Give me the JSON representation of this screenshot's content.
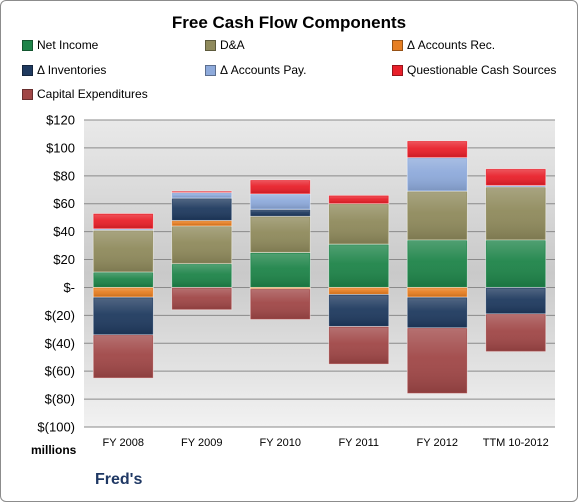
{
  "chart_data": {
    "type": "bar",
    "stacked": true,
    "title": "Free Cash Flow Components",
    "units_label": "millions",
    "company": "Fred's",
    "categories": [
      "FY 2008",
      "FY 2009",
      "FY 2010",
      "FY 2011",
      "FY 2012",
      "TTM 10-2012"
    ],
    "y_ticks": [
      "$120",
      "$100",
      "$80",
      "$60",
      "$40",
      "$20",
      "$-",
      "$(20)",
      "$(40)",
      "$(60)",
      "$(80)",
      "$(100)"
    ],
    "ylim": [
      -100,
      120
    ],
    "grid": true,
    "legend_position": "top",
    "series": [
      {
        "name": "Net Income",
        "color": "#1e8449",
        "values": [
          11,
          17,
          25,
          31,
          34,
          34
        ]
      },
      {
        "name": "D&A",
        "color": "#8f8a5c",
        "values": [
          30,
          27,
          26,
          29,
          35,
          38
        ]
      },
      {
        "name": "Δ Accounts Rec.",
        "color": "#e67e22",
        "values": [
          -7,
          4,
          -1,
          -5,
          -7,
          0
        ]
      },
      {
        "name": "Δ Inventories",
        "color": "#1f3a5f",
        "values": [
          -27,
          16,
          5,
          -23,
          -22,
          -19
        ]
      },
      {
        "name": "Δ Accounts Pay.",
        "color": "#8eaadb",
        "values": [
          1,
          4,
          11,
          0,
          24,
          1
        ]
      },
      {
        "name": "Questionable Cash Sources",
        "color": "#e8202a",
        "values": [
          11,
          1,
          10,
          6,
          12,
          12
        ]
      },
      {
        "name": "Capital Expenditures",
        "color": "#a04747",
        "values": [
          -31,
          -16,
          -22,
          -27,
          -47,
          -27
        ]
      }
    ]
  }
}
